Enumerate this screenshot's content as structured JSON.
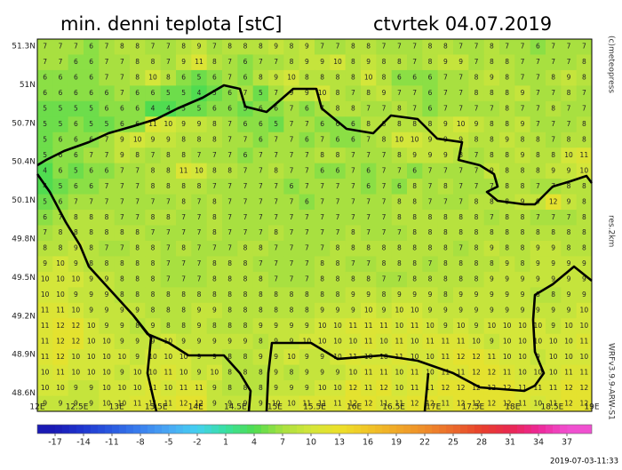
{
  "title": "min. denni teplota [stC]",
  "date": "ctvrtek 04.07.2019",
  "copyright": "(c)meteopress",
  "resolution": "res.2km",
  "model": "WRFv3.9.9-ARW-S1",
  "timestamp": "2019-07-03-11:33",
  "map": {
    "lon_labels": [
      "12E",
      "12.5E",
      "13E",
      "13.5E",
      "14E",
      "14.5E",
      "15E",
      "15.5E",
      "16E",
      "16.5E",
      "17E",
      "17.5E",
      "18E",
      "18.5E",
      "19E"
    ],
    "lat_labels": [
      "51.3N",
      "51N",
      "50.7N",
      "50.4N",
      "50.1N",
      "49.8N",
      "49.5N",
      "49.2N",
      "48.9N",
      "48.6N"
    ],
    "grid": [
      [
        7,
        7,
        7,
        6,
        7,
        8,
        8,
        7,
        7,
        8,
        9,
        7,
        8,
        8,
        8,
        9,
        8,
        9,
        7,
        7,
        8,
        8,
        7,
        7,
        7,
        8,
        8,
        7,
        7,
        8,
        7,
        7,
        6,
        7,
        7,
        7
      ],
      [
        7,
        7,
        6,
        6,
        7,
        7,
        8,
        8,
        7,
        9,
        11,
        8,
        7,
        6,
        7,
        7,
        8,
        9,
        9,
        10,
        8,
        9,
        8,
        8,
        7,
        8,
        9,
        9,
        7,
        8,
        8,
        7,
        7,
        7,
        7,
        8
      ],
      [
        6,
        6,
        6,
        6,
        7,
        7,
        8,
        10,
        8,
        6,
        5,
        6,
        7,
        6,
        8,
        9,
        10,
        8,
        8,
        8,
        8,
        10,
        8,
        6,
        6,
        6,
        7,
        7,
        8,
        9,
        8,
        7,
        7,
        8,
        9,
        8
      ],
      [
        6,
        6,
        6,
        6,
        6,
        7,
        6,
        6,
        5,
        5,
        4,
        5,
        6,
        7,
        5,
        7,
        9,
        9,
        10,
        8,
        7,
        8,
        9,
        7,
        7,
        6,
        7,
        7,
        8,
        8,
        8,
        9,
        7,
        7,
        8,
        7
      ],
      [
        5,
        5,
        5,
        5,
        6,
        6,
        6,
        4,
        4,
        5,
        5,
        6,
        6,
        5,
        6,
        6,
        7,
        6,
        7,
        8,
        8,
        7,
        7,
        8,
        7,
        6,
        7,
        7,
        7,
        7,
        8,
        7,
        7,
        8,
        7,
        7
      ],
      [
        5,
        5,
        6,
        5,
        5,
        6,
        6,
        11,
        10,
        9,
        9,
        8,
        7,
        6,
        6,
        5,
        7,
        7,
        6,
        6,
        6,
        8,
        8,
        8,
        8,
        8,
        9,
        10,
        9,
        8,
        8,
        9,
        7,
        7,
        7,
        8
      ],
      [
        5,
        6,
        6,
        6,
        7,
        9,
        10,
        9,
        9,
        8,
        8,
        8,
        7,
        7,
        6,
        7,
        7,
        6,
        7,
        6,
        6,
        7,
        8,
        10,
        10,
        9,
        9,
        9,
        8,
        8,
        9,
        8,
        8,
        7,
        8,
        8
      ],
      [
        5,
        6,
        6,
        7,
        7,
        9,
        8,
        7,
        8,
        8,
        7,
        7,
        7,
        6,
        7,
        7,
        7,
        7,
        8,
        8,
        7,
        7,
        7,
        8,
        9,
        9,
        9,
        8,
        7,
        8,
        8,
        9,
        8,
        8,
        10,
        11
      ],
      [
        4,
        6,
        5,
        6,
        6,
        7,
        7,
        8,
        8,
        11,
        10,
        8,
        8,
        7,
        7,
        8,
        7,
        7,
        6,
        6,
        7,
        6,
        7,
        7,
        6,
        7,
        7,
        7,
        7,
        9,
        8,
        8,
        8,
        9,
        9,
        10
      ],
      [
        4,
        5,
        6,
        6,
        7,
        7,
        7,
        8,
        8,
        8,
        8,
        7,
        7,
        7,
        7,
        7,
        6,
        7,
        7,
        7,
        7,
        6,
        7,
        6,
        8,
        7,
        8,
        7,
        7,
        7,
        8,
        8,
        7,
        7,
        8,
        8
      ],
      [
        5,
        6,
        7,
        7,
        7,
        7,
        7,
        7,
        7,
        8,
        7,
        8,
        7,
        7,
        7,
        7,
        7,
        6,
        7,
        7,
        7,
        7,
        7,
        8,
        8,
        7,
        7,
        7,
        8,
        8,
        8,
        9,
        9,
        12,
        9,
        8
      ],
      [
        6,
        7,
        8,
        8,
        8,
        7,
        7,
        8,
        8,
        7,
        7,
        8,
        7,
        7,
        7,
        7,
        7,
        7,
        7,
        7,
        7,
        7,
        7,
        8,
        8,
        8,
        8,
        8,
        8,
        7,
        8,
        8,
        7,
        7,
        7,
        8
      ],
      [
        7,
        8,
        8,
        8,
        8,
        8,
        8,
        7,
        7,
        7,
        7,
        8,
        7,
        7,
        7,
        8,
        7,
        7,
        7,
        7,
        8,
        7,
        7,
        7,
        8,
        8,
        8,
        8,
        8,
        8,
        8,
        8,
        8,
        8,
        8,
        8
      ],
      [
        8,
        8,
        9,
        8,
        7,
        7,
        8,
        8,
        7,
        8,
        7,
        7,
        7,
        8,
        8,
        7,
        7,
        7,
        7,
        8,
        8,
        8,
        8,
        8,
        8,
        8,
        8,
        7,
        8,
        9,
        8,
        8,
        9,
        9,
        8,
        8
      ],
      [
        9,
        10,
        9,
        8,
        8,
        8,
        8,
        8,
        7,
        7,
        7,
        8,
        8,
        8,
        7,
        7,
        7,
        7,
        8,
        8,
        7,
        7,
        8,
        8,
        8,
        7,
        8,
        8,
        8,
        8,
        9,
        8,
        9,
        9,
        9,
        9
      ],
      [
        10,
        10,
        10,
        9,
        9,
        8,
        8,
        8,
        7,
        7,
        7,
        8,
        8,
        8,
        8,
        7,
        7,
        7,
        8,
        8,
        8,
        8,
        7,
        7,
        8,
        8,
        8,
        8,
        8,
        9,
        9,
        9,
        9,
        9,
        9,
        9
      ],
      [
        10,
        10,
        9,
        9,
        9,
        8,
        8,
        8,
        8,
        8,
        8,
        8,
        8,
        8,
        8,
        8,
        8,
        8,
        8,
        8,
        9,
        9,
        8,
        9,
        9,
        9,
        8,
        9,
        9,
        9,
        9,
        9,
        8,
        8,
        9,
        9
      ],
      [
        11,
        11,
        10,
        9,
        9,
        9,
        9,
        8,
        8,
        8,
        9,
        9,
        8,
        8,
        8,
        8,
        8,
        8,
        9,
        9,
        9,
        10,
        9,
        10,
        10,
        9,
        9,
        9,
        9,
        9,
        9,
        9,
        9,
        9,
        9,
        10
      ],
      [
        11,
        12,
        12,
        10,
        9,
        9,
        8,
        9,
        8,
        8,
        9,
        8,
        8,
        8,
        9,
        9,
        9,
        9,
        10,
        10,
        11,
        11,
        11,
        10,
        11,
        10,
        9,
        10,
        9,
        10,
        10,
        10,
        10,
        9,
        10,
        10
      ],
      [
        11,
        12,
        12,
        10,
        10,
        9,
        9,
        9,
        10,
        9,
        9,
        9,
        9,
        9,
        8,
        9,
        9,
        10,
        10,
        10,
        10,
        11,
        10,
        11,
        10,
        11,
        11,
        11,
        10,
        9,
        10,
        10,
        10,
        10,
        10,
        11
      ],
      [
        11,
        12,
        10,
        10,
        10,
        10,
        9,
        10,
        10,
        10,
        9,
        9,
        8,
        8,
        9,
        9,
        10,
        9,
        9,
        10,
        11,
        10,
        10,
        11,
        10,
        10,
        11,
        12,
        12,
        11,
        10,
        10,
        9,
        10,
        10,
        10
      ],
      [
        10,
        11,
        10,
        10,
        10,
        9,
        10,
        10,
        11,
        10,
        9,
        10,
        8,
        8,
        8,
        9,
        8,
        9,
        9,
        9,
        10,
        11,
        11,
        10,
        11,
        10,
        11,
        11,
        12,
        12,
        11,
        10,
        10,
        10,
        11,
        11
      ],
      [
        10,
        10,
        9,
        9,
        10,
        10,
        10,
        11,
        10,
        11,
        11,
        9,
        8,
        8,
        8,
        9,
        9,
        9,
        10,
        10,
        12,
        11,
        12,
        10,
        11,
        11,
        12,
        12,
        12,
        12,
        12,
        11,
        11,
        11,
        12,
        12
      ],
      [
        9,
        9,
        9,
        9,
        10,
        10,
        11,
        11,
        11,
        12,
        12,
        9,
        9,
        9,
        9,
        10,
        10,
        11,
        11,
        11,
        12,
        12,
        11,
        11,
        12,
        12,
        11,
        12,
        12,
        12,
        12,
        11,
        10,
        11,
        12,
        12
      ]
    ]
  },
  "colorbar": {
    "ticks": [
      -17,
      -14,
      -11,
      -8,
      -5,
      -2,
      1,
      4,
      7,
      10,
      13,
      16,
      19,
      22,
      25,
      28,
      31,
      34,
      37
    ],
    "colors": [
      "#1a1ab4",
      "#2038d0",
      "#2a5ae0",
      "#3a80ee",
      "#4aa8f4",
      "#44d0f0",
      "#38e0a0",
      "#50dc50",
      "#a8e040",
      "#d4e63a",
      "#ece02a",
      "#f0c428",
      "#f0a828",
      "#ee8c2a",
      "#ea6a2c",
      "#e8402c",
      "#e82850",
      "#ec2898",
      "#f050d0"
    ]
  }
}
